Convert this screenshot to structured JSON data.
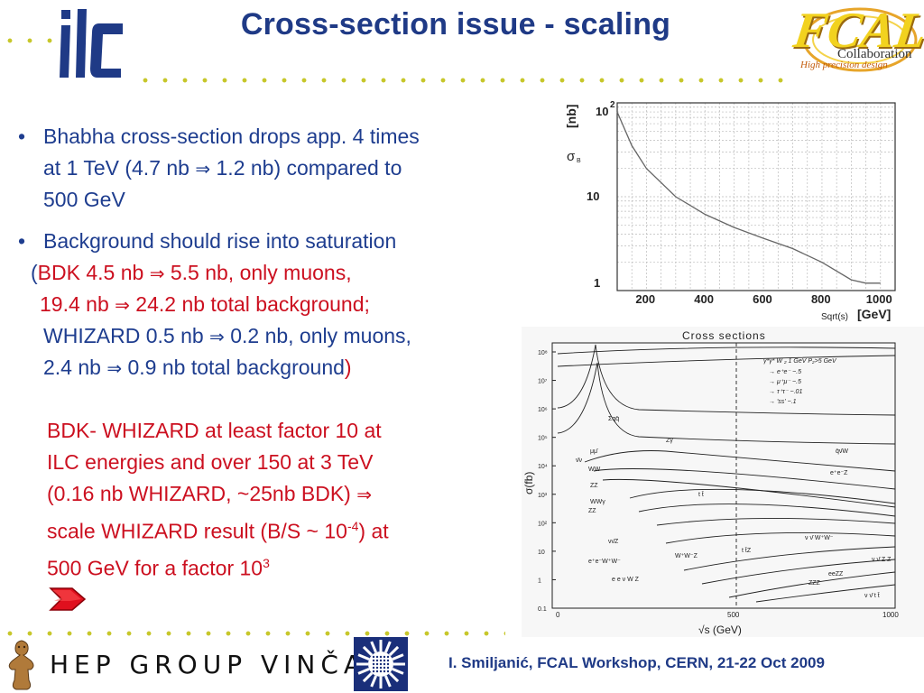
{
  "title": "Cross-section issue - scaling",
  "logos": {
    "ilc": "ilc",
    "fcal": "FCAL",
    "fcal_collab": "Collaboration",
    "fcal_tagline": "High precision design"
  },
  "colors": {
    "title": "#1f3a86",
    "text": "#1e3d8f",
    "highlight": "#cc1020",
    "dots": "#c7c72a"
  },
  "bullets": {
    "b1": {
      "lines": [
        "Bhabha cross-section drops app. 4 times",
        "at 1 TeV (4.7 nb ",
        " 1.2 nb) compared to",
        "500 GeV"
      ],
      "arrow": "⇒"
    },
    "b2": {
      "line1": "Background should rise into saturation",
      "l2_open": "(",
      "l2_red": "BDK 4.5 nb ",
      "l2_red_b": "  5.5 nb, only muons,",
      "l3_red": "19.4 nb ",
      "l3_red_b": " 24.2 nb total background;",
      "l4_blue": "WHIZARD 0.5 nb ",
      "l4_blue_b": " 0.2 nb, only muons,",
      "l5_blue": "2.4 nb ",
      "l5_blue_b": " 0.9 nb total background",
      "l5_close": ")",
      "arrow": "⇒"
    }
  },
  "conclusion": {
    "l1": "BDK- WHIZARD at least factor 10 at",
    "l2": "ILC energies and over 150 at 3 TeV",
    "l3a": "(0.16 nb WHIZARD, ",
    "tilde": "~",
    "l3b": "25nb BDK) ",
    "l4a": "scale WHIZARD result (B/S ",
    "l4b": " 10",
    "sup1": "-4",
    "l4c": ") at",
    "l5a": "500 GeV for a factor 10",
    "sup2": "3"
  },
  "chart_data": [
    {
      "type": "line",
      "x": [
        100,
        150,
        200,
        300,
        400,
        500,
        600,
        700,
        800,
        900,
        950,
        1000
      ],
      "series": [
        {
          "values": [
            80,
            35,
            20,
            10,
            6.5,
            4.7,
            3.6,
            2.8,
            2.0,
            1.3,
            1.2,
            1.2
          ]
        }
      ],
      "xlabel": "Sqrt(s)",
      "xunit": "[GeV]",
      "ylabel": "[nb]",
      "ysymbol": "σ",
      "ysub": "B",
      "xticks": [
        "200",
        "400",
        "600",
        "800",
        "1000"
      ],
      "yticks": [
        "1",
        "10",
        "10"
      ],
      "ytop_sup": "2",
      "xlim": [
        100,
        1050
      ],
      "ylim": [
        1,
        100
      ],
      "yscale": "log",
      "grid": true
    },
    {
      "type": "line",
      "title": "Cross sections",
      "xlabel": "√s (GeV)",
      "ylabel": "σ(fb)",
      "xticks": [
        "0",
        "500",
        "1000"
      ],
      "yticks": [
        "10⁸",
        "10⁷",
        "10⁶",
        "10⁵",
        "10⁴",
        "10³",
        "10²",
        "10",
        "1",
        "0.1"
      ],
      "yscale": "log",
      "legend_header": "γ*γ*   W ₂ 1 GeV   P₂>5 GeV",
      "legend_entries": [
        "→ e⁺e⁻  ~.5",
        "→ μ⁺μ⁻  ~.5",
        "→ τ⁺τ⁻  ~.01",
        "→ 'ss'  ~.1"
      ],
      "labels": [
        "Σqq̄",
        "μμ̄",
        "ν̄ν",
        "ZZ",
        "Zγ",
        "WW",
        "WWγ",
        "ZZ",
        "e⁺e⁻Z",
        "q̄ν̄W",
        "t t̄",
        "νν̄Z",
        "e⁺e⁻W⁺W⁻",
        "W⁺W⁻Z",
        "t t̄Z",
        "e e ν W Z",
        "ν ν̄ W⁺W⁻",
        "ν ν̄ Z Z",
        "eeZZ",
        "ZZZ",
        "ν ν̄ t t̄"
      ]
    }
  ],
  "footer": {
    "credit": "I. Smiljanić, FCAL Workshop, CERN, 21-22 Oct 2009",
    "hep": "HEP GROUP VINČA"
  }
}
